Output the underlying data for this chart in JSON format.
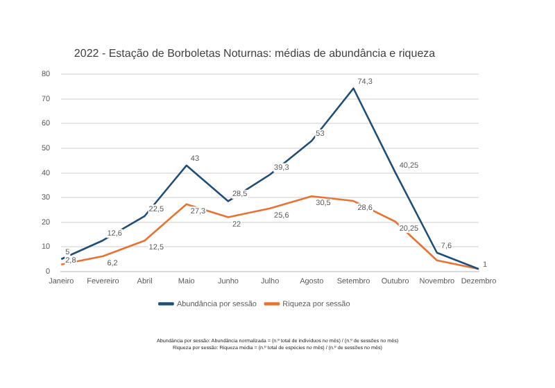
{
  "chart_data": {
    "type": "line",
    "title": "2022 - Estação de Borboletas Noturnas: médias de abundância e riqueza",
    "categories": [
      "Janeiro",
      "Fevereiro",
      "Abril",
      "Maio",
      "Junho",
      "Julho",
      "Agosto",
      "Setembro",
      "Outubro",
      "Novembro",
      "Dezembro"
    ],
    "series": [
      {
        "name": "Abundância por sessão",
        "color": "#1f4e79",
        "values": [
          5,
          12.6,
          22.5,
          43,
          28.5,
          39.3,
          53,
          74.3,
          40.25,
          7.6,
          1
        ],
        "value_labels": [
          "5",
          "12,6",
          "22,5",
          "43",
          "28,5",
          "39,3",
          "53",
          "74,3",
          "40,25",
          "7,6",
          null
        ]
      },
      {
        "name": "Riqueza por sessão",
        "color": "#e97132",
        "values": [
          2.8,
          6.2,
          12.5,
          27.3,
          22,
          25.6,
          30.5,
          28.6,
          20.25,
          4.5,
          1
        ],
        "value_labels": [
          "2,8",
          "6,2",
          "12,5",
          "27,3",
          "22",
          "25,6",
          "30,5",
          "28,6",
          "20,25",
          null,
          "1"
        ]
      }
    ],
    "ylim": [
      0,
      80
    ],
    "yticks": [
      0,
      10,
      20,
      30,
      40,
      50,
      60,
      70,
      80
    ],
    "grid": "y",
    "legend": "bottom",
    "marker": "none",
    "line_style": "solid",
    "annotations": [
      "Abundância por sessão: Abundância normalizada = (n.º total de indivíduos no mês) / (n.º de sessões no mês)",
      "Riqueza por sessão: Riqueza média = (n.º total de espécies no mês) / (n.º de sessões no mês)"
    ]
  }
}
